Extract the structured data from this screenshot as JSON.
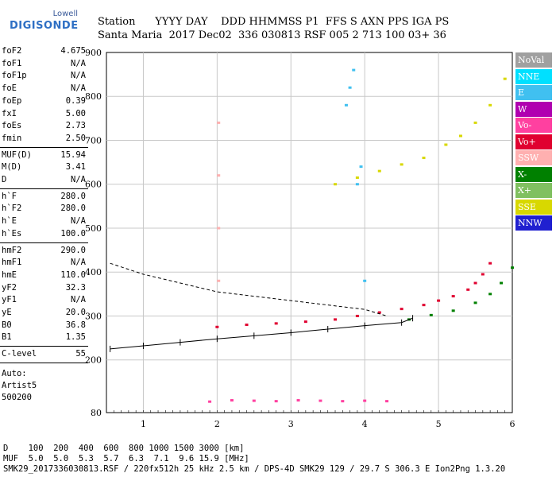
{
  "logo": {
    "line1": "Lowell",
    "line2": "DIGISONDE"
  },
  "header": {
    "labels": "Station      YYYY DAY    DDD HHMMSS P1  FFS S AXN PPS IGA PS",
    "values": "Santa Maria  2017 Dec02  336 030813 RSF 005 2 713 100 03+ 36"
  },
  "params": {
    "group1": [
      {
        "k": "foF2",
        "v": "4.675"
      },
      {
        "k": "foF1",
        "v": "N/A"
      },
      {
        "k": "foF1p",
        "v": "N/A"
      },
      {
        "k": "foE",
        "v": "N/A"
      },
      {
        "k": "foEp",
        "v": "0.39"
      },
      {
        "k": "fxI",
        "v": "5.00"
      },
      {
        "k": "foEs",
        "v": "2.73"
      },
      {
        "k": "fmin",
        "v": "2.50"
      }
    ],
    "group2": [
      {
        "k": "MUF(D)",
        "v": "15.94"
      },
      {
        "k": "M(D)",
        "v": "3.41"
      },
      {
        "k": "D",
        "v": "N/A"
      }
    ],
    "group3": [
      {
        "k": "h`F",
        "v": "280.0"
      },
      {
        "k": "h`F2",
        "v": "280.0"
      },
      {
        "k": "h`E",
        "v": "N/A"
      },
      {
        "k": "h`Es",
        "v": "100.0"
      }
    ],
    "group4": [
      {
        "k": "hmF2",
        "v": "290.0"
      },
      {
        "k": "hmF1",
        "v": "N/A"
      },
      {
        "k": "hmE",
        "v": "110.0"
      },
      {
        "k": "yF2",
        "v": "32.3"
      },
      {
        "k": "yF1",
        "v": "N/A"
      },
      {
        "k": "yE",
        "v": "20.0"
      },
      {
        "k": "B0",
        "v": "36.8"
      },
      {
        "k": "B1",
        "v": "1.35"
      }
    ],
    "group5": [
      {
        "k": "C-level",
        "v": "55"
      }
    ],
    "auto": [
      "Auto:",
      "Artist5",
      "500200"
    ]
  },
  "legend": [
    {
      "label": "NoVal",
      "color": "#a0a0a0"
    },
    {
      "label": "NNE",
      "color": "#00e0ff"
    },
    {
      "label": "E",
      "color": "#40c0f0"
    },
    {
      "label": "W",
      "color": "#b000b0"
    },
    {
      "label": "Vo-",
      "color": "#ff40a0"
    },
    {
      "label": "Vo+",
      "color": "#e00030"
    },
    {
      "label": "SSW",
      "color": "#ffb0b0"
    },
    {
      "label": "X-",
      "color": "#008000"
    },
    {
      "label": "X+",
      "color": "#80c060"
    },
    {
      "label": "SSE",
      "color": "#d8d800"
    },
    {
      "label": "NNW",
      "color": "#2020d0"
    }
  ],
  "footer": {
    "line1": "D    100  200  400  600  800 1000 1500 3000 [km]",
    "line2": "MUF  5.0  5.0  5.3  5.7  6.3  7.1  9.6 15.9 [MHz]",
    "line3": "SMK29_2017336030813.RSF / 220fx512h 25 kHz 2.5 km / DPS-4D SMK29 129 / 29.7 S 306.3 E Ion2Png 1.3.20"
  },
  "chart_data": {
    "type": "scatter",
    "xlim": [
      0.5,
      6.0
    ],
    "ylim": [
      80,
      900
    ],
    "xticks": [
      1,
      2,
      3,
      4,
      5,
      6
    ],
    "yticks": [
      80,
      200,
      300,
      400,
      500,
      600,
      700,
      800,
      900
    ],
    "grid": true,
    "series": [
      {
        "label": "Vo+",
        "color": "#e00030",
        "x": [
          2.0,
          2.4,
          2.8,
          3.2,
          3.6,
          3.9,
          4.2,
          4.5,
          4.8,
          5.0,
          5.2,
          5.4,
          5.5,
          5.6,
          5.7
        ],
        "y": [
          275,
          280,
          283,
          287,
          292,
          300,
          308,
          316,
          325,
          335,
          345,
          360,
          375,
          395,
          420
        ]
      },
      {
        "label": "X-",
        "color": "#008000",
        "x": [
          4.6,
          4.9,
          5.2,
          5.5,
          5.7,
          5.85,
          6.0
        ],
        "y": [
          292,
          302,
          312,
          330,
          350,
          375,
          410
        ]
      },
      {
        "label": "SSE",
        "color": "#d8d800",
        "x": [
          3.6,
          3.9,
          4.2,
          4.5,
          4.8,
          5.1,
          5.3,
          5.5,
          5.7,
          5.9
        ],
        "y": [
          600,
          615,
          630,
          645,
          660,
          690,
          710,
          740,
          780,
          840
        ]
      },
      {
        "label": "E",
        "color": "#40c0f0",
        "x": [
          3.75,
          3.8,
          3.85,
          3.9,
          3.95,
          4.0
        ],
        "y": [
          780,
          820,
          860,
          600,
          640,
          380
        ]
      },
      {
        "label": "Es",
        "color": "#ff40a0",
        "x": [
          1.9,
          2.2,
          2.5,
          2.8,
          3.1,
          3.4,
          3.7,
          4.0,
          4.3
        ],
        "y": [
          105,
          108,
          107,
          106,
          108,
          107,
          106,
          107,
          106
        ]
      },
      {
        "label": "SSW",
        "color": "#ffb0b0",
        "x": [
          2.02,
          2.02,
          2.02,
          2.02
        ],
        "y": [
          380,
          500,
          620,
          740
        ]
      },
      {
        "label": "O-trace-fit",
        "color": "#000000",
        "x": [
          0.55,
          1.0,
          1.5,
          2.0,
          2.5,
          3.0,
          3.5,
          4.0,
          4.5,
          4.65
        ],
        "y": [
          225,
          232,
          240,
          248,
          255,
          262,
          270,
          278,
          285,
          295
        ]
      },
      {
        "label": "X-trace-fit",
        "color": "#000000",
        "x": [
          0.55,
          1.0,
          1.5,
          2.0,
          2.5,
          3.0,
          3.5,
          4.0,
          4.3
        ],
        "y": [
          420,
          395,
          375,
          355,
          345,
          335,
          325,
          315,
          300
        ]
      }
    ]
  }
}
